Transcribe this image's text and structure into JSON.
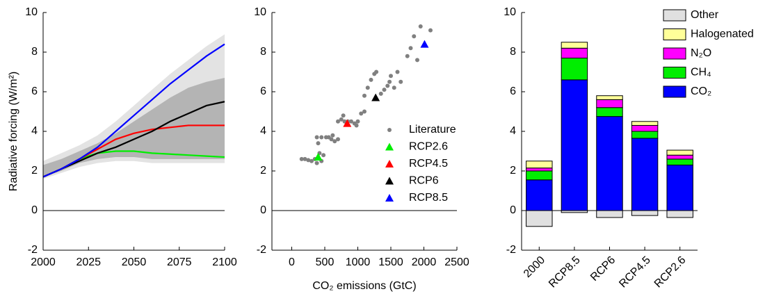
{
  "chart_data": [
    {
      "type": "line",
      "y_label": "Radiative forcing (W/m²)",
      "x": [
        2000,
        2010,
        2020,
        2030,
        2040,
        2050,
        2060,
        2070,
        2080,
        2090,
        2100
      ],
      "xlim": [
        2000,
        2100
      ],
      "xticks": [
        2000,
        2025,
        2050,
        2075,
        2100
      ],
      "ylim": [
        -2,
        10
      ],
      "yticks": [
        -2,
        0,
        2,
        4,
        6,
        8,
        10
      ],
      "bands": [
        {
          "color": "#e3e3e3",
          "lower": [
            1.6,
            1.9,
            2.2,
            2.4,
            2.5,
            2.5,
            2.4,
            2.4,
            2.4,
            2.4,
            2.4
          ],
          "upper": [
            2.5,
            2.9,
            3.3,
            3.8,
            4.5,
            5.3,
            6.1,
            6.9,
            7.6,
            8.3,
            8.9
          ]
        },
        {
          "color": "#b4b4b4",
          "lower": [
            1.7,
            2.0,
            2.4,
            2.6,
            2.7,
            2.7,
            2.6,
            2.6,
            2.6,
            2.6,
            2.6
          ],
          "upper": [
            2.3,
            2.6,
            3.0,
            3.4,
            3.9,
            4.5,
            5.1,
            5.7,
            6.2,
            6.5,
            6.7
          ]
        }
      ],
      "series": [
        {
          "color": "#00ee00",
          "values": [
            1.7,
            2.1,
            2.6,
            2.9,
            3.0,
            3.0,
            2.9,
            2.85,
            2.8,
            2.75,
            2.7
          ]
        },
        {
          "color": "#ff0000",
          "values": [
            1.7,
            2.1,
            2.6,
            3.1,
            3.6,
            3.9,
            4.1,
            4.2,
            4.3,
            4.3,
            4.3
          ]
        },
        {
          "color": "#000000",
          "values": [
            1.7,
            2.1,
            2.5,
            2.9,
            3.2,
            3.6,
            4.0,
            4.5,
            4.9,
            5.3,
            5.5
          ]
        },
        {
          "color": "#0000ff",
          "values": [
            1.7,
            2.1,
            2.6,
            3.2,
            4.0,
            4.8,
            5.6,
            6.4,
            7.1,
            7.8,
            8.4
          ]
        }
      ]
    },
    {
      "type": "scatter",
      "x_label": "CO₂ emissions (GtC)",
      "xlim": [
        -300,
        2500
      ],
      "xticks": [
        0,
        500,
        1000,
        1500,
        2000,
        2500
      ],
      "ylim": [
        -2,
        10
      ],
      "yticks": [
        -2,
        0,
        2,
        4,
        6,
        8,
        10
      ],
      "series": [
        {
          "name": "Literature",
          "color": "#808080",
          "marker": "circle",
          "x": [
            150,
            200,
            250,
            300,
            350,
            380,
            420,
            450,
            480,
            380,
            400,
            450,
            520,
            560,
            600,
            620,
            650,
            700,
            700,
            750,
            780,
            800,
            850,
            900,
            950,
            980,
            1000,
            1050,
            1100,
            1100,
            1150,
            1200,
            1250,
            1280,
            1350,
            1400,
            1450,
            1480,
            1500,
            1550,
            1600,
            1650,
            1750,
            1800,
            1900,
            1950,
            2100,
            1850
          ],
          "values": [
            2.6,
            2.6,
            2.55,
            2.5,
            2.6,
            2.4,
            2.9,
            2.5,
            2.8,
            3.7,
            3.4,
            3.7,
            3.7,
            3.7,
            3.6,
            3.8,
            3.5,
            3.6,
            4.5,
            4.6,
            4.8,
            4.5,
            4.5,
            4.5,
            4.4,
            4.3,
            4.5,
            4.9,
            5.0,
            5.8,
            6.2,
            6.6,
            6.9,
            7.0,
            5.9,
            6.1,
            6.3,
            6.5,
            6.8,
            6.2,
            7.0,
            6.5,
            7.8,
            8.2,
            7.6,
            9.3,
            9.1,
            8.8
          ]
        },
        {
          "name": "RCP2.6",
          "color": "#00ee00",
          "marker": "triangle",
          "x": [
            400
          ],
          "values": [
            2.7
          ]
        },
        {
          "name": "RCP4.5",
          "color": "#ff0000",
          "marker": "triangle",
          "x": [
            840
          ],
          "values": [
            4.4
          ]
        },
        {
          "name": "RCP6",
          "color": "#000000",
          "marker": "triangle",
          "x": [
            1270
          ],
          "values": [
            5.7
          ]
        },
        {
          "name": "RCP8.5",
          "color": "#0000ff",
          "marker": "triangle",
          "x": [
            2010
          ],
          "values": [
            8.4
          ]
        }
      ]
    },
    {
      "type": "bar",
      "stacked": true,
      "categories": [
        "2000",
        "RCP8.5",
        "RCP6",
        "RCP4.5",
        "RCP2.6"
      ],
      "ylim": [
        -2,
        10
      ],
      "yticks": [
        -2,
        0,
        2,
        4,
        6,
        8,
        10
      ],
      "series": [
        {
          "name": "CO₂",
          "color": "#0000ff",
          "values": [
            1.55,
            6.6,
            4.75,
            3.65,
            2.3
          ]
        },
        {
          "name": "CH₄",
          "color": "#00ee00",
          "values": [
            0.45,
            1.1,
            0.45,
            0.35,
            0.3
          ]
        },
        {
          "name": "N₂O",
          "color": "#ff00ff",
          "values": [
            0.15,
            0.5,
            0.4,
            0.3,
            0.2
          ]
        },
        {
          "name": "Halogenated",
          "color": "#ffff99",
          "values": [
            0.35,
            0.3,
            0.2,
            0.2,
            0.25
          ]
        },
        {
          "name": "Other",
          "color": "#e0e0e0",
          "values": [
            -0.8,
            -0.1,
            -0.35,
            -0.25,
            -0.35
          ]
        }
      ]
    }
  ]
}
